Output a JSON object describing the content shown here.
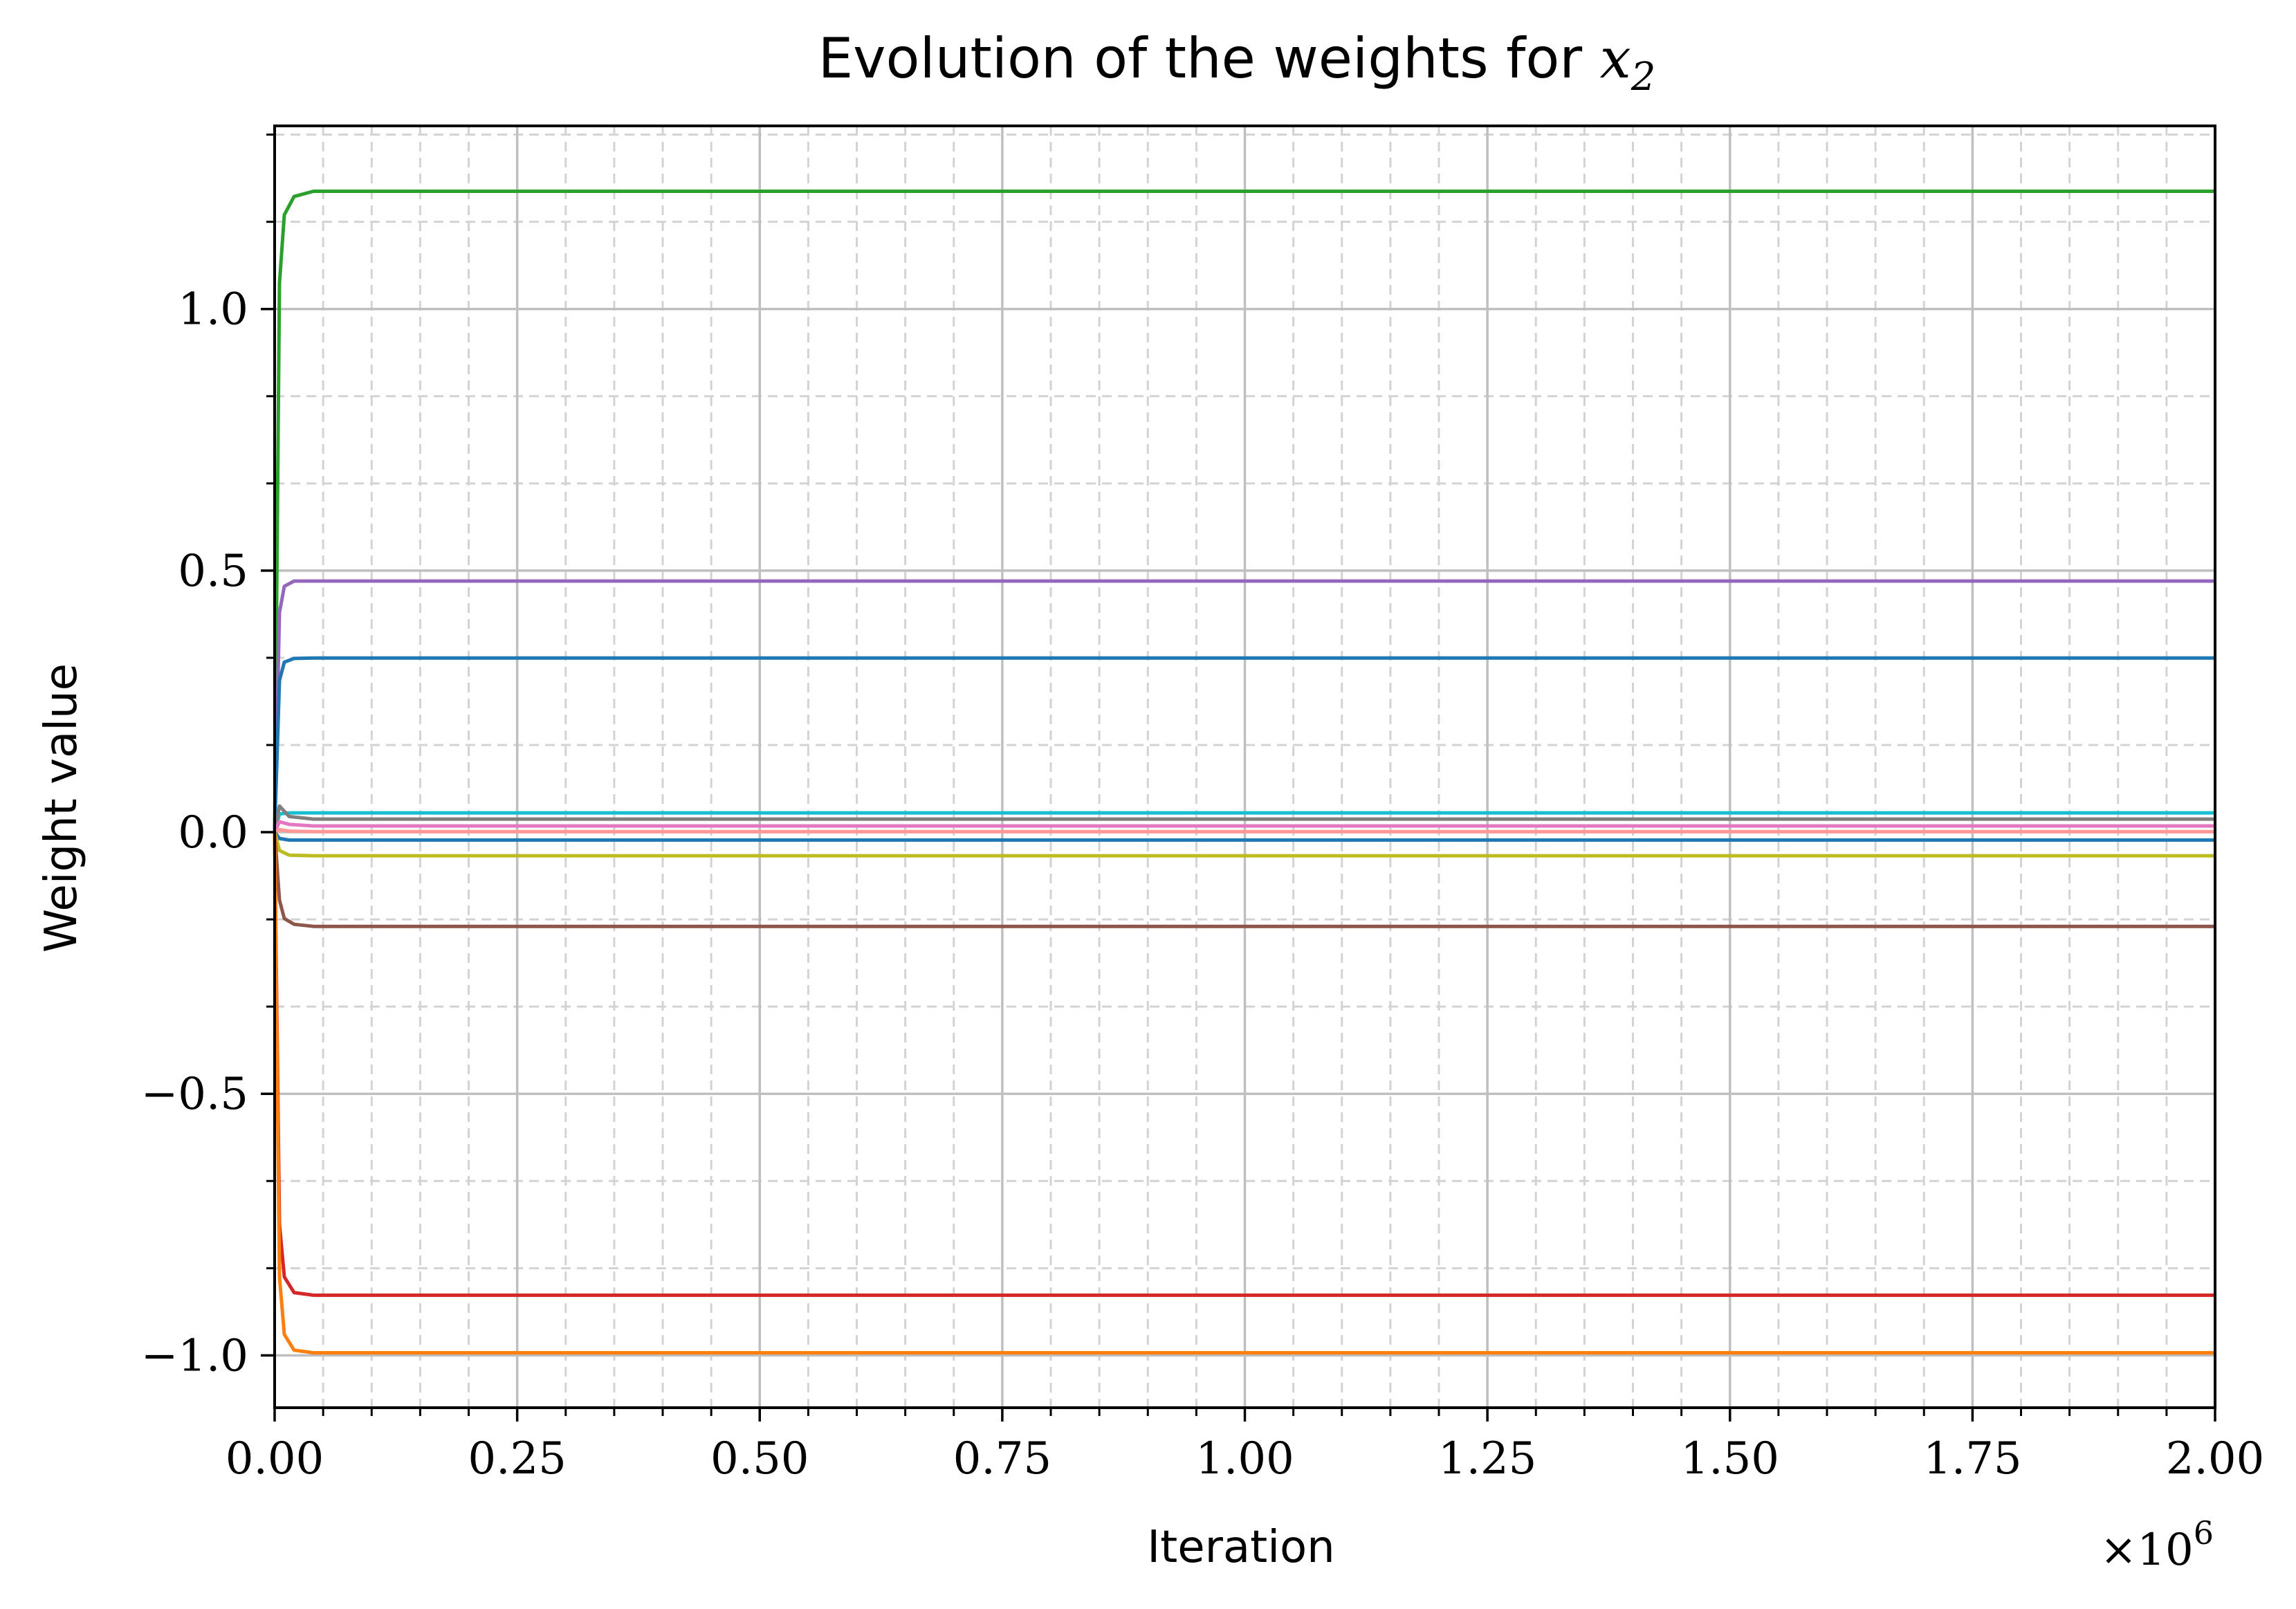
{
  "chart_data": {
    "type": "line",
    "title_prefix": "Evolution of the weights for ",
    "title_math_base": "x",
    "title_math_sub": "2",
    "xlabel": "Iteration",
    "ylabel": "Weight value",
    "x_multiplier_base": "×10",
    "x_multiplier_exp": "6",
    "xlim": [
      0,
      2000000
    ],
    "ylim": [
      -1.1,
      1.35
    ],
    "x_ticks": [
      0,
      250000,
      500000,
      750000,
      1000000,
      1250000,
      1500000,
      1750000,
      2000000
    ],
    "x_tick_labels": [
      "0.00",
      "0.25",
      "0.50",
      "0.75",
      "1.00",
      "1.25",
      "1.50",
      "1.75",
      "2.00"
    ],
    "y_ticks": [
      -1.0,
      -0.5,
      0.0,
      0.5,
      1.0
    ],
    "y_tick_labels": [
      "−1.0",
      "−0.5",
      "0.0",
      "0.5",
      "1.0"
    ],
    "x_minor_step": 50000,
    "y_minor_step": 0.1666667,
    "grid": "major solid, minor dashed",
    "series": [
      {
        "color": "#2ca02c",
        "x": [
          0,
          5000,
          10000,
          20000,
          40000,
          2000000
        ],
        "values": [
          0.0,
          1.05,
          1.18,
          1.215,
          1.225,
          1.225
        ]
      },
      {
        "color": "#9467bd",
        "x": [
          0,
          5000,
          10000,
          20000,
          40000,
          2000000
        ],
        "values": [
          0.0,
          0.42,
          0.47,
          0.48,
          0.48,
          0.48
        ]
      },
      {
        "color": "#1f77b4",
        "x": [
          0,
          5000,
          10000,
          20000,
          40000,
          2000000
        ],
        "values": [
          0.0,
          0.29,
          0.325,
          0.332,
          0.333,
          0.333
        ]
      },
      {
        "color": "#17becf",
        "x": [
          0,
          5000,
          15000,
          40000,
          2000000
        ],
        "values": [
          0.0,
          0.035,
          0.037,
          0.037,
          0.037
        ]
      },
      {
        "color": "#7f7f7f",
        "x": [
          0,
          5000,
          15000,
          40000,
          2000000
        ],
        "values": [
          0.0,
          0.05,
          0.03,
          0.025,
          0.025
        ]
      },
      {
        "color": "#e377c2",
        "x": [
          0,
          5000,
          15000,
          40000,
          2000000
        ],
        "values": [
          0.0,
          0.02,
          0.015,
          0.012,
          0.012
        ]
      },
      {
        "color": "#ff9896",
        "x": [
          0,
          5000,
          15000,
          40000,
          2000000
        ],
        "values": [
          0.0,
          0.005,
          0.002,
          0.001,
          0.001
        ]
      },
      {
        "color": "#1f77b4",
        "x": [
          0,
          5000,
          15000,
          40000,
          2000000
        ],
        "values": [
          0.0,
          -0.012,
          -0.015,
          -0.015,
          -0.015
        ]
      },
      {
        "color": "#bcbd22",
        "x": [
          0,
          5000,
          15000,
          40000,
          2000000
        ],
        "values": [
          0.0,
          -0.035,
          -0.044,
          -0.045,
          -0.045
        ]
      },
      {
        "color": "#8c564b",
        "x": [
          0,
          5000,
          10000,
          20000,
          40000,
          2000000
        ],
        "values": [
          0.0,
          -0.13,
          -0.165,
          -0.176,
          -0.18,
          -0.18
        ]
      },
      {
        "color": "#d62728",
        "x": [
          0,
          5000,
          10000,
          20000,
          40000,
          2000000
        ],
        "values": [
          0.0,
          -0.75,
          -0.85,
          -0.88,
          -0.885,
          -0.885
        ]
      },
      {
        "color": "#ff7f0e",
        "x": [
          0,
          5000,
          10000,
          20000,
          40000,
          2000000
        ],
        "values": [
          0.0,
          -0.85,
          -0.96,
          -0.99,
          -0.995,
          -0.995
        ]
      }
    ]
  }
}
